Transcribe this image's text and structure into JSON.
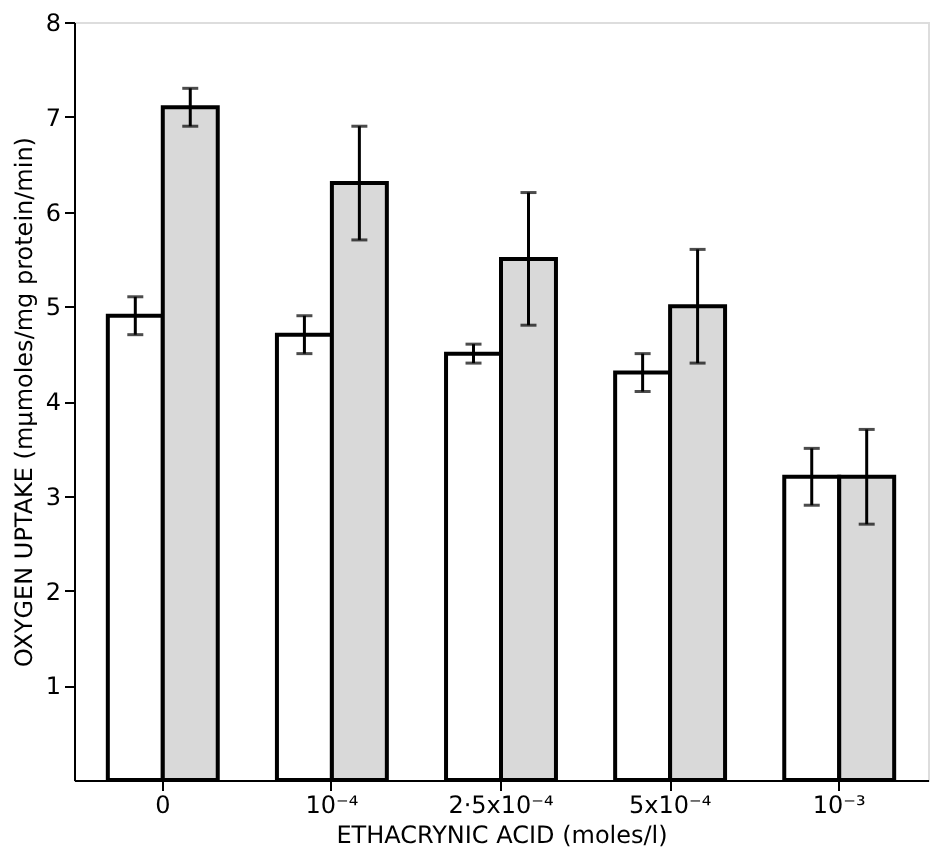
{
  "chart_data": {
    "type": "bar",
    "xlabel": "ETHACRYNIC ACID (moles/l)",
    "ylabel": "OXYGEN UPTAKE (mμmoles/mg protein/min)",
    "categories": [
      "0",
      "10⁻⁴",
      "2·5x10⁻⁴",
      "5x10⁻⁴",
      "10⁻³"
    ],
    "series": [
      {
        "color": "#ffffff",
        "values": [
          4.9,
          4.7,
          4.5,
          4.3,
          3.2
        ],
        "errors": [
          0.2,
          0.2,
          0.1,
          0.2,
          0.3
        ]
      },
      {
        "color": "#d9d9d9",
        "values": [
          7.1,
          6.3,
          5.5,
          5.0,
          3.2
        ],
        "errors": [
          0.2,
          0.6,
          0.7,
          0.6,
          0.5
        ]
      }
    ],
    "ylim": [
      0,
      8
    ],
    "yticks": [
      1,
      2,
      3,
      4,
      5,
      6,
      7,
      8
    ],
    "grid": false,
    "legend": false
  }
}
